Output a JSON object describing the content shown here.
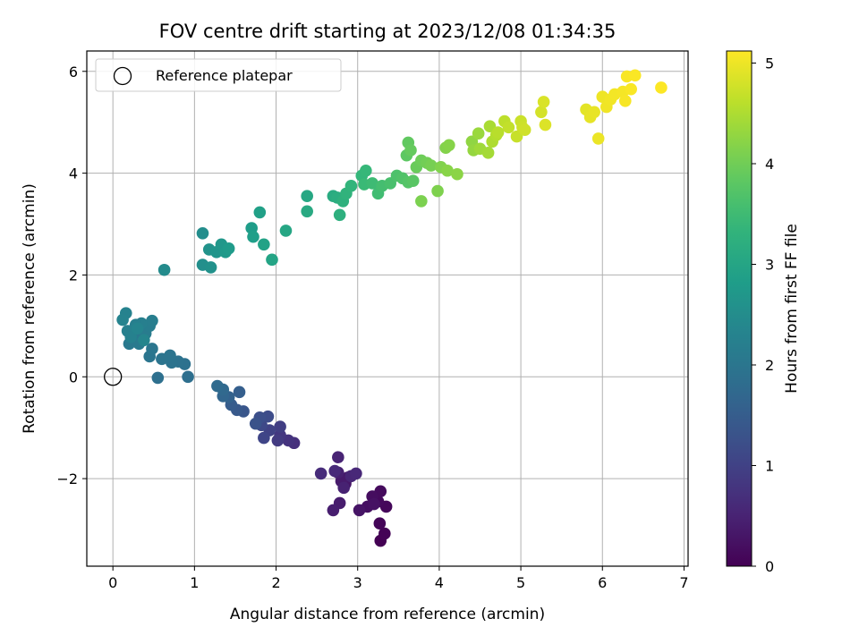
{
  "chart_data": {
    "type": "scatter",
    "title": "FOV centre drift starting at 2023/12/08 01:34:35",
    "xlabel": "Angular distance from reference (arcmin)",
    "ylabel": "Rotation from reference (arcmin)",
    "colorbar_label": "Hours from first FF file",
    "xlim": [
      -0.32,
      7.05
    ],
    "ylim": [
      -3.72,
      6.4
    ],
    "xticks": [
      0,
      1,
      2,
      3,
      4,
      5,
      6,
      7
    ],
    "yticks": [
      -2,
      0,
      2,
      4,
      6
    ],
    "xtick_labels": [
      "0",
      "1",
      "2",
      "3",
      "4",
      "5",
      "6",
      "7"
    ],
    "ytick_labels": [
      "−2",
      "0",
      "2",
      "4",
      "6"
    ],
    "colorbar_ticks": [
      0,
      1,
      2,
      3,
      4,
      5
    ],
    "colorbar_tick_labels": [
      "0",
      "1",
      "2",
      "3",
      "4",
      "5"
    ],
    "colorbar_range": [
      0,
      5.12
    ],
    "colormap": "viridis",
    "grid": true,
    "legend": {
      "position": "top-left",
      "entries": [
        "Reference platepar"
      ]
    },
    "reference_point": {
      "x": 0,
      "y": 0,
      "label": "Reference platepar"
    },
    "points": [
      {
        "x": 3.28,
        "y": -3.22,
        "t": 0.0
      },
      {
        "x": 3.33,
        "y": -3.08,
        "t": 0.03
      },
      {
        "x": 3.27,
        "y": -2.88,
        "t": 0.06
      },
      {
        "x": 3.35,
        "y": -2.55,
        "t": 0.09
      },
      {
        "x": 3.25,
        "y": -2.45,
        "t": 0.12
      },
      {
        "x": 3.28,
        "y": -2.25,
        "t": 0.15
      },
      {
        "x": 3.18,
        "y": -2.35,
        "t": 0.18
      },
      {
        "x": 3.12,
        "y": -2.55,
        "t": 0.21
      },
      {
        "x": 3.2,
        "y": -2.5,
        "t": 0.24
      },
      {
        "x": 3.02,
        "y": -2.62,
        "t": 0.27
      },
      {
        "x": 2.85,
        "y": -2.1,
        "t": 0.3
      },
      {
        "x": 2.88,
        "y": -1.98,
        "t": 0.33
      },
      {
        "x": 2.8,
        "y": -2.05,
        "t": 0.36
      },
      {
        "x": 2.78,
        "y": -2.48,
        "t": 0.39
      },
      {
        "x": 2.7,
        "y": -2.62,
        "t": 0.42
      },
      {
        "x": 2.76,
        "y": -1.88,
        "t": 0.45
      },
      {
        "x": 2.83,
        "y": -2.18,
        "t": 0.48
      },
      {
        "x": 2.76,
        "y": -1.58,
        "t": 0.51
      },
      {
        "x": 2.92,
        "y": -1.95,
        "t": 0.54
      },
      {
        "x": 2.98,
        "y": -1.9,
        "t": 0.57
      },
      {
        "x": 2.72,
        "y": -1.85,
        "t": 0.6
      },
      {
        "x": 2.55,
        "y": -1.9,
        "t": 0.63
      },
      {
        "x": 2.22,
        "y": -1.3,
        "t": 0.7
      },
      {
        "x": 2.15,
        "y": -1.25,
        "t": 0.76
      },
      {
        "x": 2.05,
        "y": -1.15,
        "t": 0.82
      },
      {
        "x": 2.02,
        "y": -1.25,
        "t": 0.88
      },
      {
        "x": 2.05,
        "y": -0.98,
        "t": 0.94
      },
      {
        "x": 1.92,
        "y": -1.05,
        "t": 1.0
      },
      {
        "x": 1.85,
        "y": -1.2,
        "t": 1.06
      },
      {
        "x": 1.82,
        "y": -0.95,
        "t": 1.12
      },
      {
        "x": 1.9,
        "y": -0.78,
        "t": 1.18
      },
      {
        "x": 1.8,
        "y": -0.8,
        "t": 1.24
      },
      {
        "x": 1.75,
        "y": -0.92,
        "t": 1.3
      },
      {
        "x": 1.6,
        "y": -0.68,
        "t": 1.36
      },
      {
        "x": 1.52,
        "y": -0.65,
        "t": 1.42
      },
      {
        "x": 1.45,
        "y": -0.55,
        "t": 1.48
      },
      {
        "x": 1.55,
        "y": -0.3,
        "t": 1.54
      },
      {
        "x": 1.42,
        "y": -0.4,
        "t": 1.6
      },
      {
        "x": 1.35,
        "y": -0.38,
        "t": 1.66
      },
      {
        "x": 1.35,
        "y": -0.25,
        "t": 1.72
      },
      {
        "x": 1.28,
        "y": -0.18,
        "t": 1.78
      },
      {
        "x": 0.92,
        "y": 0.0,
        "t": 1.86
      },
      {
        "x": 0.55,
        "y": -0.02,
        "t": 1.88
      },
      {
        "x": 0.88,
        "y": 0.25,
        "t": 1.9
      },
      {
        "x": 0.8,
        "y": 0.3,
        "t": 1.92
      },
      {
        "x": 0.72,
        "y": 0.28,
        "t": 1.94
      },
      {
        "x": 0.7,
        "y": 0.42,
        "t": 1.96
      },
      {
        "x": 0.6,
        "y": 0.35,
        "t": 1.98
      },
      {
        "x": 0.45,
        "y": 0.4,
        "t": 2.0
      },
      {
        "x": 0.48,
        "y": 0.55,
        "t": 2.02
      },
      {
        "x": 0.35,
        "y": 0.8,
        "t": 2.04
      },
      {
        "x": 0.28,
        "y": 0.7,
        "t": 2.06
      },
      {
        "x": 0.2,
        "y": 0.65,
        "t": 2.08
      },
      {
        "x": 0.32,
        "y": 0.65,
        "t": 2.1
      },
      {
        "x": 0.25,
        "y": 0.92,
        "t": 2.12
      },
      {
        "x": 0.4,
        "y": 0.85,
        "t": 2.14
      },
      {
        "x": 0.45,
        "y": 1.0,
        "t": 2.16
      },
      {
        "x": 0.48,
        "y": 1.1,
        "t": 2.18
      },
      {
        "x": 0.35,
        "y": 1.05,
        "t": 2.2
      },
      {
        "x": 0.28,
        "y": 1.02,
        "t": 2.22
      },
      {
        "x": 0.18,
        "y": 0.9,
        "t": 2.24
      },
      {
        "x": 0.22,
        "y": 0.78,
        "t": 2.26
      },
      {
        "x": 0.16,
        "y": 1.25,
        "t": 2.28
      },
      {
        "x": 0.12,
        "y": 1.12,
        "t": 2.3
      },
      {
        "x": 0.3,
        "y": 0.95,
        "t": 2.32
      },
      {
        "x": 0.38,
        "y": 0.72,
        "t": 2.34
      },
      {
        "x": 0.63,
        "y": 2.1,
        "t": 2.45
      },
      {
        "x": 1.1,
        "y": 2.82,
        "t": 2.5
      },
      {
        "x": 1.1,
        "y": 2.2,
        "t": 2.54
      },
      {
        "x": 1.2,
        "y": 2.15,
        "t": 2.58
      },
      {
        "x": 1.18,
        "y": 2.5,
        "t": 2.62
      },
      {
        "x": 1.27,
        "y": 2.45,
        "t": 2.66
      },
      {
        "x": 1.33,
        "y": 2.6,
        "t": 2.7
      },
      {
        "x": 1.38,
        "y": 2.45,
        "t": 2.74
      },
      {
        "x": 1.42,
        "y": 2.52,
        "t": 2.78
      },
      {
        "x": 1.7,
        "y": 2.92,
        "t": 2.82
      },
      {
        "x": 1.72,
        "y": 2.75,
        "t": 2.86
      },
      {
        "x": 1.8,
        "y": 3.23,
        "t": 2.9
      },
      {
        "x": 1.85,
        "y": 2.6,
        "t": 2.94
      },
      {
        "x": 1.95,
        "y": 2.3,
        "t": 2.98
      },
      {
        "x": 2.12,
        "y": 2.87,
        "t": 3.02
      },
      {
        "x": 2.38,
        "y": 3.55,
        "t": 3.06
      },
      {
        "x": 2.38,
        "y": 3.25,
        "t": 3.1
      },
      {
        "x": 2.7,
        "y": 3.55,
        "t": 3.14
      },
      {
        "x": 2.75,
        "y": 3.52,
        "t": 3.18
      },
      {
        "x": 2.78,
        "y": 3.18,
        "t": 3.22
      },
      {
        "x": 2.82,
        "y": 3.45,
        "t": 3.26
      },
      {
        "x": 2.86,
        "y": 3.6,
        "t": 3.3
      },
      {
        "x": 2.92,
        "y": 3.75,
        "t": 3.34
      },
      {
        "x": 3.05,
        "y": 3.95,
        "t": 3.38
      },
      {
        "x": 3.1,
        "y": 4.05,
        "t": 3.42
      },
      {
        "x": 3.08,
        "y": 3.78,
        "t": 3.46
      },
      {
        "x": 3.18,
        "y": 3.8,
        "t": 3.5
      },
      {
        "x": 3.25,
        "y": 3.6,
        "t": 3.54
      },
      {
        "x": 3.3,
        "y": 3.75,
        "t": 3.58
      },
      {
        "x": 3.4,
        "y": 3.8,
        "t": 3.62
      },
      {
        "x": 3.48,
        "y": 3.95,
        "t": 3.66
      },
      {
        "x": 3.55,
        "y": 3.9,
        "t": 3.7
      },
      {
        "x": 3.62,
        "y": 3.82,
        "t": 3.74
      },
      {
        "x": 3.68,
        "y": 3.85,
        "t": 3.78
      },
      {
        "x": 3.6,
        "y": 4.35,
        "t": 3.82
      },
      {
        "x": 3.62,
        "y": 4.6,
        "t": 3.86
      },
      {
        "x": 3.65,
        "y": 4.45,
        "t": 3.9
      },
      {
        "x": 3.72,
        "y": 4.12,
        "t": 3.94
      },
      {
        "x": 3.78,
        "y": 4.25,
        "t": 3.98
      },
      {
        "x": 3.85,
        "y": 4.2,
        "t": 4.02
      },
      {
        "x": 3.9,
        "y": 4.15,
        "t": 4.06
      },
      {
        "x": 3.78,
        "y": 3.45,
        "t": 4.1
      },
      {
        "x": 3.98,
        "y": 3.65,
        "t": 4.12
      },
      {
        "x": 4.02,
        "y": 4.12,
        "t": 4.14
      },
      {
        "x": 4.08,
        "y": 4.5,
        "t": 4.16
      },
      {
        "x": 4.12,
        "y": 4.55,
        "t": 4.18
      },
      {
        "x": 4.1,
        "y": 4.05,
        "t": 4.2
      },
      {
        "x": 4.22,
        "y": 3.98,
        "t": 4.22
      },
      {
        "x": 4.4,
        "y": 4.62,
        "t": 4.26
      },
      {
        "x": 4.42,
        "y": 4.45,
        "t": 4.3
      },
      {
        "x": 4.48,
        "y": 4.78,
        "t": 4.34
      },
      {
        "x": 4.5,
        "y": 4.48,
        "t": 4.38
      },
      {
        "x": 4.6,
        "y": 4.4,
        "t": 4.42
      },
      {
        "x": 4.62,
        "y": 4.92,
        "t": 4.46
      },
      {
        "x": 4.65,
        "y": 4.62,
        "t": 4.5
      },
      {
        "x": 4.7,
        "y": 4.75,
        "t": 4.54
      },
      {
        "x": 4.72,
        "y": 4.8,
        "t": 4.58
      },
      {
        "x": 4.8,
        "y": 5.02,
        "t": 4.62
      },
      {
        "x": 4.85,
        "y": 4.9,
        "t": 4.66
      },
      {
        "x": 4.95,
        "y": 4.72,
        "t": 4.7
      },
      {
        "x": 5.0,
        "y": 5.02,
        "t": 4.72
      },
      {
        "x": 5.02,
        "y": 4.9,
        "t": 4.74
      },
      {
        "x": 5.05,
        "y": 4.85,
        "t": 4.76
      },
      {
        "x": 5.25,
        "y": 5.2,
        "t": 4.8
      },
      {
        "x": 5.28,
        "y": 5.4,
        "t": 4.84
      },
      {
        "x": 5.3,
        "y": 4.95,
        "t": 4.86
      },
      {
        "x": 5.8,
        "y": 5.25,
        "t": 4.92
      },
      {
        "x": 5.85,
        "y": 5.1,
        "t": 4.94
      },
      {
        "x": 5.9,
        "y": 5.2,
        "t": 4.96
      },
      {
        "x": 5.95,
        "y": 4.68,
        "t": 4.98
      },
      {
        "x": 6.0,
        "y": 5.5,
        "t": 5.0
      },
      {
        "x": 6.05,
        "y": 5.3,
        "t": 5.02
      },
      {
        "x": 6.1,
        "y": 5.45,
        "t": 5.03
      },
      {
        "x": 6.15,
        "y": 5.55,
        "t": 5.04
      },
      {
        "x": 6.25,
        "y": 5.6,
        "t": 5.06
      },
      {
        "x": 6.28,
        "y": 5.42,
        "t": 5.07
      },
      {
        "x": 6.3,
        "y": 5.9,
        "t": 5.08
      },
      {
        "x": 6.35,
        "y": 5.65,
        "t": 5.09
      },
      {
        "x": 6.4,
        "y": 5.92,
        "t": 5.1
      },
      {
        "x": 6.72,
        "y": 5.68,
        "t": 5.11
      }
    ]
  }
}
